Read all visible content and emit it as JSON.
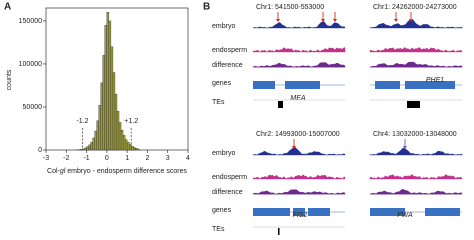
{
  "panels": {
    "a": "A",
    "b": "B"
  },
  "chart_data": {
    "type": "histogram",
    "ylabel": "counts",
    "xlabel_parts": [
      "Col-",
      "gl",
      " embryo - endosperm difference scores"
    ],
    "bins": [
      -1.5,
      -1.4,
      -1.3,
      -1.2,
      -1.1,
      -1.0,
      -0.9,
      -0.8,
      -0.7,
      -0.6,
      -0.5,
      -0.4,
      -0.3,
      -0.2,
      -0.1,
      0.0,
      0.1,
      0.2,
      0.3,
      0.4,
      0.5,
      0.6,
      0.7,
      0.8,
      0.9,
      1.0,
      1.1,
      1.2,
      1.3,
      1.4,
      1.5,
      1.6
    ],
    "values": [
      200,
      400,
      800,
      1500,
      2500,
      4000,
      6000,
      9000,
      14000,
      22000,
      34000,
      52000,
      78000,
      110000,
      145000,
      160000,
      150000,
      120000,
      90000,
      65000,
      45000,
      32000,
      23000,
      17000,
      12000,
      9000,
      6500,
      4500,
      3000,
      2000,
      1200
    ],
    "color": "#9c9a3c",
    "xlim": [
      -3,
      4
    ],
    "xticks": [
      -3,
      -2,
      -1,
      0,
      1,
      2,
      3,
      4
    ],
    "ylim": [
      0,
      165000
    ],
    "yticks": [
      0,
      50000,
      100000,
      150000
    ],
    "thresholds": [
      {
        "value": -1.2,
        "label": "-1.2"
      },
      {
        "value": 1.2,
        "label": "+1.2"
      }
    ]
  },
  "panel_b": {
    "track_labels": [
      "embryo",
      "endosperm",
      "difference",
      "genes",
      "TEs"
    ],
    "loci": [
      {
        "title": "Chr1: 541500-553000",
        "gene": "MEA"
      },
      {
        "title": "Chr1: 24262000-24273000",
        "gene": "PHE1"
      },
      {
        "title": "Chr2: 14993000-15007000",
        "gene": "FIS2"
      },
      {
        "title": "Chr4: 13032000-13048000",
        "gene": "FWA"
      }
    ]
  }
}
